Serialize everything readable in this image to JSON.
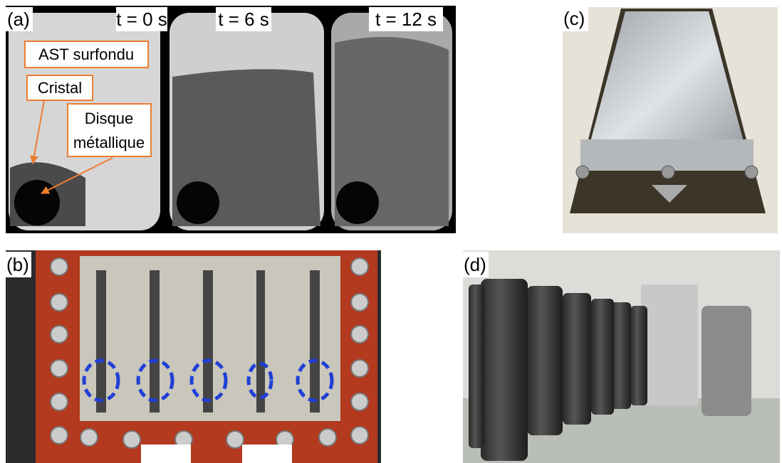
{
  "panels": {
    "a": {
      "label": "(a)",
      "times": [
        "t = 0 s",
        "t = 6 s",
        "t = 12 s"
      ],
      "annotations": {
        "liquid": "AST surfondu",
        "crystal": "Cristal",
        "disc": [
          "Disque",
          "métallique"
        ]
      }
    },
    "b": {
      "label": "(b)"
    },
    "c": {
      "label": "(c)"
    },
    "d": {
      "label": "(d)"
    }
  }
}
